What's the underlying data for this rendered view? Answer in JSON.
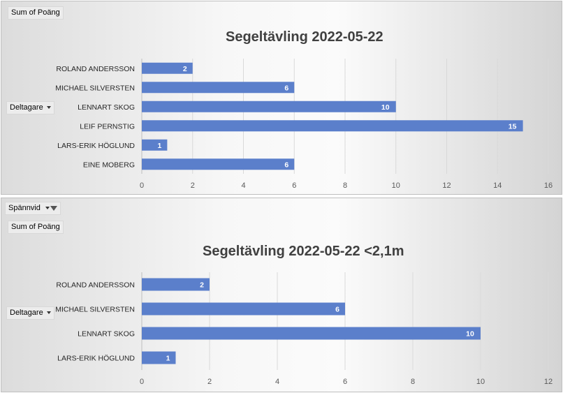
{
  "charts": [
    {
      "field_button": "Sum of Poäng",
      "axis_button": "Deltagare",
      "title": "Segeltävling 2022-05-22",
      "chart_data": {
        "type": "bar",
        "orientation": "horizontal",
        "title": "Segeltävling 2022-05-22",
        "categories": [
          "ROLAND ANDERSSON",
          "MICHAEL SILVERSTEN",
          "LENNART SKOG",
          "LEIF PERNSTIG",
          "LARS-ERIK HÖGLUND",
          "EINE MOBERG"
        ],
        "values": [
          2,
          6,
          10,
          15,
          1,
          6
        ],
        "xlim": [
          0,
          16
        ],
        "xticks": [
          0,
          2,
          4,
          6,
          8,
          10,
          12,
          14,
          16
        ],
        "grid": true,
        "data_labels": true,
        "bar_color": "#5b7fcb"
      }
    },
    {
      "filter_button": "Spännvid",
      "field_button": "Sum of Poäng",
      "axis_button": "Deltagare",
      "title": "Segeltävling 2022-05-22 <2,1m",
      "chart_data": {
        "type": "bar",
        "orientation": "horizontal",
        "title": "Segeltävling 2022-05-22 <2,1m",
        "categories": [
          "ROLAND ANDERSSON",
          "MICHAEL SILVERSTEN",
          "LENNART SKOG",
          "LARS-ERIK HÖGLUND"
        ],
        "values": [
          2,
          6,
          10,
          1
        ],
        "xlim": [
          0,
          12
        ],
        "xticks": [
          0,
          2,
          4,
          6,
          8,
          10,
          12
        ],
        "grid": true,
        "data_labels": true,
        "bar_color": "#5b7fcb"
      }
    }
  ]
}
